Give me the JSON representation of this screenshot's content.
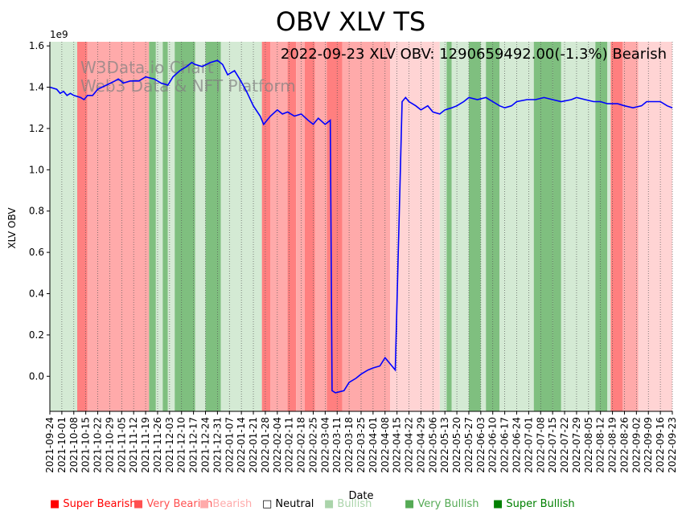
{
  "chart_data": {
    "type": "line",
    "title": "OBV XLV TS",
    "annotation": "2022-09-23 XLV OBV: 1290659492.00(-1.3%) Bearish",
    "watermark": [
      "W3Data.io Chart",
      "Web3 Data & NFT Platform"
    ],
    "xlabel": "Date",
    "ylabel": "XLV OBV",
    "y_multiplier": "1e9",
    "ylim": [
      -0.17,
      1.62
    ],
    "yticks": [
      0.0,
      0.2,
      0.4,
      0.6,
      0.8,
      1.0,
      1.2,
      1.4,
      1.6
    ],
    "ytick_labels": [
      "0.0",
      "0.2",
      "0.4",
      "0.6",
      "0.8",
      "1.0",
      "1.2",
      "1.4",
      "1.6"
    ],
    "xlim": [
      "2021-09-24",
      "2022-09-23"
    ],
    "xticks": [
      "2021-09-24",
      "2021-10-01",
      "2021-10-08",
      "2021-10-15",
      "2021-10-22",
      "2021-10-29",
      "2021-11-05",
      "2021-11-12",
      "2021-11-19",
      "2021-11-26",
      "2021-12-03",
      "2021-12-10",
      "2021-12-17",
      "2021-12-24",
      "2021-12-31",
      "2022-01-07",
      "2022-01-14",
      "2022-01-21",
      "2022-01-28",
      "2022-02-04",
      "2022-02-11",
      "2022-02-18",
      "2022-02-25",
      "2022-03-04",
      "2022-03-11",
      "2022-03-18",
      "2022-03-25",
      "2022-04-01",
      "2022-04-08",
      "2022-04-15",
      "2022-04-22",
      "2022-04-29",
      "2022-05-06",
      "2022-05-13",
      "2022-05-20",
      "2022-05-27",
      "2022-06-03",
      "2022-06-10",
      "2022-06-17",
      "2022-06-24",
      "2022-07-01",
      "2022-07-08",
      "2022-07-15",
      "2022-07-22",
      "2022-07-29",
      "2022-08-05",
      "2022-08-12",
      "2022-08-19",
      "2022-08-26",
      "2022-09-02",
      "2022-09-09",
      "2022-09-16",
      "2022-09-23"
    ],
    "grid": "vertical dotted",
    "line_color": "#0000ff",
    "series": [
      {
        "points": [
          [
            "2021-09-24",
            1.4
          ],
          [
            "2021-09-28",
            1.39
          ],
          [
            "2021-09-30",
            1.37
          ],
          [
            "2021-10-02",
            1.38
          ],
          [
            "2021-10-04",
            1.36
          ],
          [
            "2021-10-06",
            1.37
          ],
          [
            "2021-10-08",
            1.36
          ],
          [
            "2021-10-12",
            1.35
          ],
          [
            "2021-10-14",
            1.34
          ],
          [
            "2021-10-16",
            1.36
          ],
          [
            "2021-10-19",
            1.36
          ],
          [
            "2021-10-22",
            1.39
          ],
          [
            "2021-10-27",
            1.41
          ],
          [
            "2021-11-01",
            1.43
          ],
          [
            "2021-11-03",
            1.44
          ],
          [
            "2021-11-06",
            1.42
          ],
          [
            "2021-11-10",
            1.43
          ],
          [
            "2021-11-15",
            1.43
          ],
          [
            "2021-11-19",
            1.45
          ],
          [
            "2021-11-24",
            1.44
          ],
          [
            "2021-11-28",
            1.42
          ],
          [
            "2021-12-02",
            1.41
          ],
          [
            "2021-12-05",
            1.45
          ],
          [
            "2021-12-09",
            1.48
          ],
          [
            "2021-12-13",
            1.5
          ],
          [
            "2021-12-16",
            1.52
          ],
          [
            "2021-12-18",
            1.51
          ],
          [
            "2021-12-22",
            1.5
          ],
          [
            "2021-12-27",
            1.52
          ],
          [
            "2021-12-31",
            1.53
          ],
          [
            "2022-01-03",
            1.51
          ],
          [
            "2022-01-06",
            1.46
          ],
          [
            "2022-01-10",
            1.48
          ],
          [
            "2022-01-13",
            1.44
          ],
          [
            "2022-01-17",
            1.38
          ],
          [
            "2022-01-21",
            1.31
          ],
          [
            "2022-01-25",
            1.26
          ],
          [
            "2022-01-27",
            1.22
          ],
          [
            "2022-01-31",
            1.26
          ],
          [
            "2022-02-04",
            1.29
          ],
          [
            "2022-02-07",
            1.27
          ],
          [
            "2022-02-10",
            1.28
          ],
          [
            "2022-02-14",
            1.26
          ],
          [
            "2022-02-18",
            1.27
          ],
          [
            "2022-02-22",
            1.24
          ],
          [
            "2022-02-25",
            1.22
          ],
          [
            "2022-02-28",
            1.25
          ],
          [
            "2022-03-04",
            1.22
          ],
          [
            "2022-03-07",
            1.24
          ],
          [
            "2022-03-08",
            -0.07
          ],
          [
            "2022-03-10",
            -0.08
          ],
          [
            "2022-03-15",
            -0.07
          ],
          [
            "2022-03-18",
            -0.03
          ],
          [
            "2022-03-22",
            -0.01
          ],
          [
            "2022-03-25",
            0.01
          ],
          [
            "2022-03-29",
            0.03
          ],
          [
            "2022-04-01",
            0.04
          ],
          [
            "2022-04-05",
            0.05
          ],
          [
            "2022-04-08",
            0.09
          ],
          [
            "2022-04-12",
            0.05
          ],
          [
            "2022-04-14",
            0.03
          ],
          [
            "2022-04-18",
            1.33
          ],
          [
            "2022-04-20",
            1.35
          ],
          [
            "2022-04-22",
            1.33
          ],
          [
            "2022-04-26",
            1.31
          ],
          [
            "2022-04-29",
            1.29
          ],
          [
            "2022-05-03",
            1.31
          ],
          [
            "2022-05-06",
            1.28
          ],
          [
            "2022-05-10",
            1.27
          ],
          [
            "2022-05-13",
            1.29
          ],
          [
            "2022-05-17",
            1.3
          ],
          [
            "2022-05-20",
            1.31
          ],
          [
            "2022-05-24",
            1.33
          ],
          [
            "2022-05-27",
            1.35
          ],
          [
            "2022-06-01",
            1.34
          ],
          [
            "2022-06-06",
            1.35
          ],
          [
            "2022-06-10",
            1.33
          ],
          [
            "2022-06-14",
            1.31
          ],
          [
            "2022-06-17",
            1.3
          ],
          [
            "2022-06-21",
            1.31
          ],
          [
            "2022-06-24",
            1.33
          ],
          [
            "2022-06-30",
            1.34
          ],
          [
            "2022-07-05",
            1.34
          ],
          [
            "2022-07-10",
            1.35
          ],
          [
            "2022-07-15",
            1.34
          ],
          [
            "2022-07-20",
            1.33
          ],
          [
            "2022-07-26",
            1.34
          ],
          [
            "2022-07-29",
            1.35
          ],
          [
            "2022-08-03",
            1.34
          ],
          [
            "2022-08-08",
            1.33
          ],
          [
            "2022-08-12",
            1.33
          ],
          [
            "2022-08-16",
            1.32
          ],
          [
            "2022-08-22",
            1.32
          ],
          [
            "2022-08-26",
            1.31
          ],
          [
            "2022-08-31",
            1.3
          ],
          [
            "2022-09-05",
            1.31
          ],
          [
            "2022-09-08",
            1.33
          ],
          [
            "2022-09-12",
            1.33
          ],
          [
            "2022-09-16",
            1.33
          ],
          [
            "2022-09-20",
            1.31
          ],
          [
            "2022-09-23",
            1.3
          ]
        ]
      }
    ],
    "regions": [
      {
        "start": "2021-09-24",
        "end": "2021-10-10",
        "level": "bullish"
      },
      {
        "start": "2021-10-10",
        "end": "2021-10-16",
        "level": "very-bearish"
      },
      {
        "start": "2021-10-16",
        "end": "2021-11-21",
        "level": "bearish"
      },
      {
        "start": "2021-11-21",
        "end": "2021-11-25",
        "level": "very-bullish"
      },
      {
        "start": "2021-11-25",
        "end": "2021-11-29",
        "level": "bullish"
      },
      {
        "start": "2021-11-29",
        "end": "2021-12-02",
        "level": "very-bullish"
      },
      {
        "start": "2021-12-02",
        "end": "2021-12-06",
        "level": "bullish"
      },
      {
        "start": "2021-12-06",
        "end": "2021-12-18",
        "level": "very-bullish"
      },
      {
        "start": "2021-12-18",
        "end": "2021-12-24",
        "level": "bullish"
      },
      {
        "start": "2021-12-24",
        "end": "2022-01-02",
        "level": "very-bullish"
      },
      {
        "start": "2022-01-02",
        "end": "2022-01-26",
        "level": "bullish"
      },
      {
        "start": "2022-01-26",
        "end": "2022-01-31",
        "level": "very-bearish"
      },
      {
        "start": "2022-01-31",
        "end": "2022-02-10",
        "level": "bearish"
      },
      {
        "start": "2022-02-10",
        "end": "2022-02-15",
        "level": "very-bearish"
      },
      {
        "start": "2022-02-15",
        "end": "2022-02-20",
        "level": "bearish"
      },
      {
        "start": "2022-02-20",
        "end": "2022-02-26",
        "level": "very-bearish"
      },
      {
        "start": "2022-02-26",
        "end": "2022-03-05",
        "level": "bearish"
      },
      {
        "start": "2022-03-05",
        "end": "2022-03-14",
        "level": "very-bearish"
      },
      {
        "start": "2022-03-14",
        "end": "2022-04-11",
        "level": "bearish"
      },
      {
        "start": "2022-04-11",
        "end": "2022-05-10",
        "level": "bearish-light"
      },
      {
        "start": "2022-05-10",
        "end": "2022-05-14",
        "level": "bullish"
      },
      {
        "start": "2022-05-14",
        "end": "2022-05-17",
        "level": "very-bullish"
      },
      {
        "start": "2022-05-17",
        "end": "2022-05-27",
        "level": "bullish"
      },
      {
        "start": "2022-05-27",
        "end": "2022-06-03",
        "level": "very-bullish"
      },
      {
        "start": "2022-06-03",
        "end": "2022-06-06",
        "level": "bullish"
      },
      {
        "start": "2022-06-06",
        "end": "2022-06-14",
        "level": "very-bullish"
      },
      {
        "start": "2022-06-14",
        "end": "2022-07-04",
        "level": "bullish"
      },
      {
        "start": "2022-07-04",
        "end": "2022-07-15",
        "level": "very-bullish"
      },
      {
        "start": "2022-07-15",
        "end": "2022-07-20",
        "level": "very-bullish"
      },
      {
        "start": "2022-07-20",
        "end": "2022-08-09",
        "level": "bullish"
      },
      {
        "start": "2022-08-09",
        "end": "2022-08-16",
        "level": "very-bullish"
      },
      {
        "start": "2022-08-16",
        "end": "2022-08-18",
        "level": "bullish"
      },
      {
        "start": "2022-08-18",
        "end": "2022-08-25",
        "level": "very-bearish"
      },
      {
        "start": "2022-08-25",
        "end": "2022-09-03",
        "level": "bearish"
      },
      {
        "start": "2022-09-03",
        "end": "2022-09-23",
        "level": "bearish-light"
      }
    ],
    "legend": [
      {
        "label": "Super Bearish",
        "color": "#ff0000"
      },
      {
        "label": "Very Bearish",
        "color": "#ff5050"
      },
      {
        "label": "Bearish",
        "color": "#ffaaaa"
      },
      {
        "label": "Neutral",
        "color": "#000000"
      },
      {
        "label": "Bullish",
        "color": "#aad4aa"
      },
      {
        "label": "Very Bullish",
        "color": "#55aa55"
      },
      {
        "label": "Super Bullish",
        "color": "#008000"
      }
    ],
    "region_colors": {
      "bullish": "#d4ead4",
      "very-bullish": "#7fbf7f",
      "bearish": "#ffaaaa",
      "very-bearish": "#ff7f7f",
      "bearish-light": "#ffd4d4"
    }
  }
}
